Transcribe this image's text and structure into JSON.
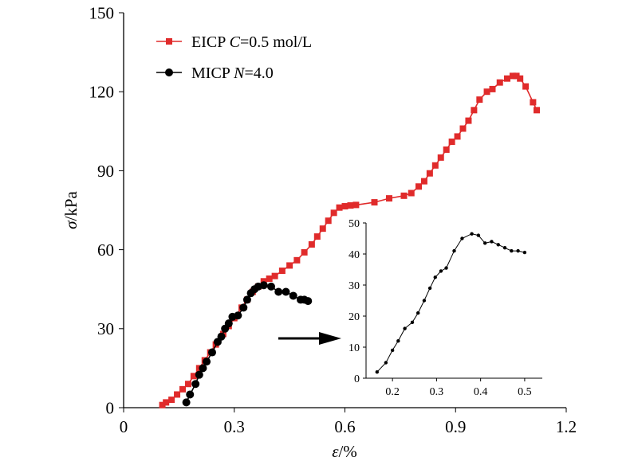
{
  "chart_data": [
    {
      "id": "main",
      "type": "line",
      "xlabel": {
        "symbol": "ε",
        "unit": "/%"
      },
      "ylabel": {
        "symbol": "σ",
        "unit": "/kPa"
      },
      "xlim": [
        0,
        1.2
      ],
      "ylim": [
        0,
        150
      ],
      "xticks": [
        0,
        0.3,
        0.6,
        0.9,
        1.2
      ],
      "xtick_labels": [
        "0",
        "0.3",
        "0.6",
        "0.9",
        "1.2"
      ],
      "yticks": [
        0,
        30,
        60,
        90,
        120,
        150
      ],
      "ytick_labels": [
        "0",
        "30",
        "60",
        "90",
        "120",
        "150"
      ],
      "grid": false,
      "legend_position": "top-left",
      "series": [
        {
          "key": "eicp",
          "legend": {
            "prefix": "EICP ",
            "var": "C",
            "suffix": "=0.5 mol/L"
          },
          "color": "#e02b2b",
          "marker": "square",
          "x": [
            0.105,
            0.115,
            0.13,
            0.145,
            0.16,
            0.175,
            0.19,
            0.205,
            0.22,
            0.235,
            0.25,
            0.27,
            0.285,
            0.3,
            0.32,
            0.335,
            0.35,
            0.365,
            0.38,
            0.395,
            0.41,
            0.43,
            0.45,
            0.47,
            0.49,
            0.51,
            0.525,
            0.54,
            0.555,
            0.57,
            0.585,
            0.6,
            0.615,
            0.63,
            0.68,
            0.72,
            0.76,
            0.78,
            0.8,
            0.815,
            0.83,
            0.845,
            0.86,
            0.875,
            0.89,
            0.905,
            0.92,
            0.935,
            0.95,
            0.965,
            0.985,
            1.0,
            1.02,
            1.04,
            1.055,
            1.065,
            1.075,
            1.09,
            1.11,
            1.12
          ],
          "y": [
            1,
            2,
            3,
            5,
            7,
            9,
            12,
            15,
            18,
            21,
            24,
            28,
            31,
            34,
            38,
            41,
            44,
            46,
            48,
            49,
            50,
            52,
            54,
            56,
            59,
            62,
            65,
            68,
            71,
            74,
            76,
            76.5,
            76.8,
            77,
            78,
            79.5,
            80.5,
            81.5,
            84,
            86,
            89,
            92,
            95,
            98,
            101,
            103,
            106,
            109,
            113,
            117,
            120,
            121,
            123.5,
            125,
            126,
            126,
            125,
            122,
            116,
            113
          ]
        },
        {
          "key": "micp",
          "legend": {
            "prefix": "MICP ",
            "var": "N",
            "suffix": "=4.0"
          },
          "color": "#000000",
          "marker": "circle",
          "x": [
            0.17,
            0.18,
            0.195,
            0.205,
            0.215,
            0.225,
            0.24,
            0.255,
            0.265,
            0.275,
            0.285,
            0.295,
            0.31,
            0.325,
            0.335,
            0.345,
            0.355,
            0.365,
            0.38,
            0.4,
            0.42,
            0.44,
            0.46,
            0.48,
            0.49,
            0.5
          ],
          "y": [
            2,
            5,
            9,
            12.5,
            15,
            17.5,
            21,
            25,
            27,
            30,
            32,
            34.5,
            35,
            38,
            41,
            43.5,
            45,
            46,
            46.5,
            46,
            44,
            44,
            42.5,
            41,
            41,
            40.5
          ]
        }
      ],
      "annotation": "arrow pointing from MICP curve to inset"
    },
    {
      "id": "inset",
      "type": "line",
      "xlim": [
        0.14,
        0.54
      ],
      "ylim": [
        0,
        50
      ],
      "xticks": [
        0.2,
        0.3,
        0.4,
        0.5
      ],
      "xtick_labels": [
        "0.2",
        "0.3",
        "0.4",
        "0.5"
      ],
      "yticks": [
        0,
        10,
        20,
        30,
        40,
        50
      ],
      "ytick_labels": [
        "0",
        "10",
        "20",
        "30",
        "40",
        "50"
      ],
      "grid": false,
      "series": [
        {
          "key": "micp",
          "color": "#000000",
          "marker": "circle",
          "x": [
            0.165,
            0.185,
            0.2,
            0.213,
            0.228,
            0.245,
            0.258,
            0.272,
            0.285,
            0.297,
            0.31,
            0.322,
            0.34,
            0.358,
            0.38,
            0.395,
            0.41,
            0.425,
            0.44,
            0.455,
            0.47,
            0.485,
            0.5
          ],
          "y": [
            2,
            5,
            9,
            12,
            16,
            18,
            21,
            25,
            29,
            32.5,
            34.5,
            35.5,
            41,
            45,
            46.5,
            46,
            43.5,
            44,
            43,
            42,
            41,
            41,
            40.5
          ]
        }
      ]
    }
  ]
}
